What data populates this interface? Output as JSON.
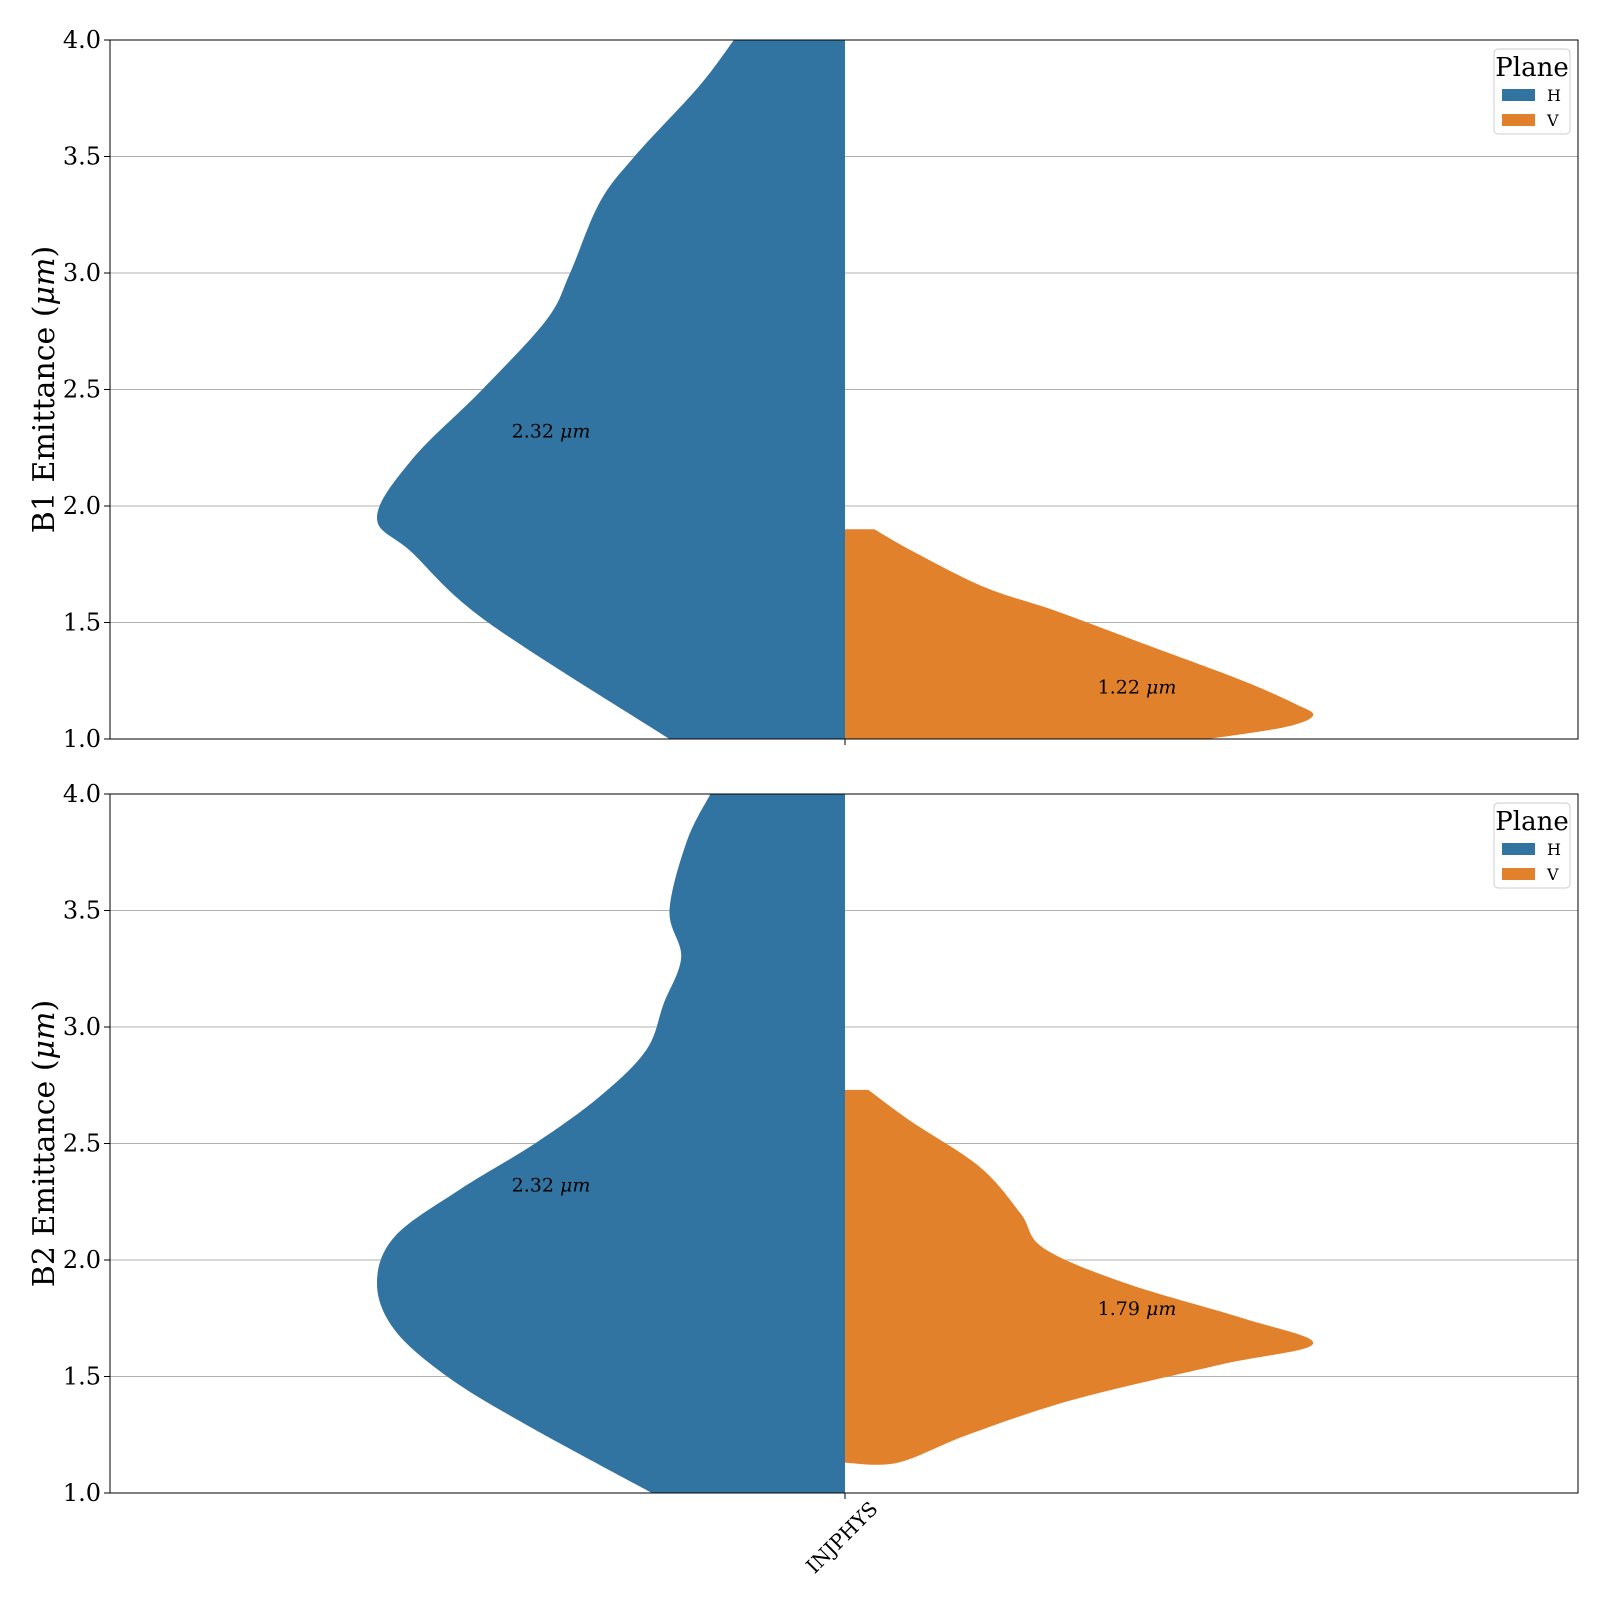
{
  "chart_data": [
    {
      "type": "violin",
      "ylabel": "B1 Emittance (μm)",
      "ylim": [
        1.0,
        4.0
      ],
      "yticks": [
        "1.0",
        "1.5",
        "2.0",
        "2.5",
        "3.0",
        "3.5",
        "4.0"
      ],
      "grid": "horizontal",
      "legend": {
        "title": "Plane",
        "placement": "top-right",
        "entries": [
          {
            "label": "H",
            "color": "#3274a1"
          },
          {
            "label": "V",
            "color": "#e1812c"
          }
        ]
      },
      "category": "INJPHYS",
      "series": [
        {
          "name": "H",
          "side": "left",
          "color": "#3274a1",
          "annotation": "2.32 μm",
          "annotation_y": 2.32,
          "profile": [
            [
              1.0,
              0.3
            ],
            [
              1.5,
              0.61
            ],
            [
              1.8,
              0.74
            ],
            [
              1.95,
              0.8
            ],
            [
              2.2,
              0.74
            ],
            [
              2.5,
              0.62
            ],
            [
              2.8,
              0.51
            ],
            [
              3.0,
              0.47
            ],
            [
              3.3,
              0.42
            ],
            [
              3.5,
              0.36
            ],
            [
              3.8,
              0.25
            ],
            [
              4.0,
              0.19
            ]
          ]
        },
        {
          "name": "V",
          "side": "right",
          "color": "#e1812c",
          "annotation": "1.22 μm",
          "annotation_y": 1.22,
          "profile": [
            [
              1.9,
              0.05
            ],
            [
              1.8,
              0.12
            ],
            [
              1.65,
              0.24
            ],
            [
              1.55,
              0.36
            ],
            [
              1.4,
              0.52
            ],
            [
              1.25,
              0.68
            ],
            [
              1.15,
              0.77
            ],
            [
              1.1,
              0.8
            ],
            [
              1.05,
              0.75
            ],
            [
              1.0,
              0.62
            ]
          ]
        }
      ]
    },
    {
      "type": "violin",
      "ylabel": "B2 Emittance (μm)",
      "ylim": [
        1.0,
        4.0
      ],
      "yticks": [
        "1.0",
        "1.5",
        "2.0",
        "2.5",
        "3.0",
        "3.5",
        "4.0"
      ],
      "grid": "horizontal",
      "legend": {
        "title": "Plane",
        "placement": "top-right",
        "entries": [
          {
            "label": "H",
            "color": "#3274a1"
          },
          {
            "label": "V",
            "color": "#e1812c"
          }
        ]
      },
      "category": "INJPHYS",
      "series": [
        {
          "name": "H",
          "side": "left",
          "color": "#3274a1",
          "annotation": "2.32 μm",
          "annotation_y": 2.32,
          "profile": [
            [
              1.0,
              0.33
            ],
            [
              1.3,
              0.55
            ],
            [
              1.5,
              0.68
            ],
            [
              1.7,
              0.77
            ],
            [
              1.9,
              0.8
            ],
            [
              2.1,
              0.77
            ],
            [
              2.3,
              0.66
            ],
            [
              2.5,
              0.53
            ],
            [
              2.7,
              0.42
            ],
            [
              2.9,
              0.34
            ],
            [
              3.1,
              0.31
            ],
            [
              3.3,
              0.28
            ],
            [
              3.5,
              0.3
            ],
            [
              3.8,
              0.27
            ],
            [
              4.0,
              0.23
            ]
          ]
        },
        {
          "name": "V",
          "side": "right",
          "color": "#e1812c",
          "annotation": "1.79 μm",
          "annotation_y": 1.79,
          "profile": [
            [
              2.73,
              0.04
            ],
            [
              2.6,
              0.11
            ],
            [
              2.4,
              0.23
            ],
            [
              2.2,
              0.3
            ],
            [
              2.05,
              0.34
            ],
            [
              1.9,
              0.48
            ],
            [
              1.75,
              0.68
            ],
            [
              1.64,
              0.8
            ],
            [
              1.55,
              0.64
            ],
            [
              1.4,
              0.39
            ],
            [
              1.25,
              0.21
            ],
            [
              1.13,
              0.09
            ],
            [
              1.13,
              0.0
            ]
          ]
        }
      ]
    }
  ]
}
